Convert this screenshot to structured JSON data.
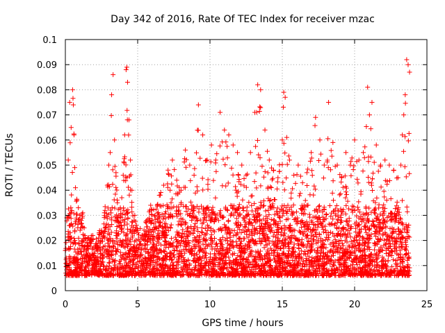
{
  "chart_data": {
    "type": "scatter",
    "title": "Day 342 of 2016, Rate Of TEC Index for receiver mzac",
    "xlabel": "GPS time / hours",
    "ylabel": "ROTI / TECUs",
    "xlim": [
      0,
      25
    ],
    "ylim": [
      0,
      0.1
    ],
    "grid": true,
    "marker": "+",
    "color": "#ff0000",
    "x_ticks": [
      0,
      5,
      10,
      15,
      20,
      25
    ],
    "x_tick_labels": [
      "0",
      "5",
      "10",
      "15",
      "20",
      "25"
    ],
    "y_ticks": [
      0,
      0.01,
      0.02,
      0.03,
      0.04,
      0.05,
      0.06,
      0.07,
      0.08,
      0.09,
      0.1
    ],
    "y_tick_labels": [
      "0",
      "0.01",
      "0.02",
      "0.03",
      "0.04",
      "0.05",
      "0.06",
      "0.07",
      "0.08",
      "0.09",
      "0.1"
    ],
    "series": [
      {
        "name": "ROTI",
        "x": [
          0.0,
          0.1,
          0.2,
          0.3,
          0.4,
          0.5,
          0.55,
          0.6,
          0.65,
          0.7,
          0.8,
          0.9,
          1.0,
          1.1,
          1.2,
          1.3,
          1.5,
          1.7,
          1.9,
          2.1,
          2.3,
          2.5,
          2.7,
          2.9,
          3.0,
          3.1,
          3.2,
          3.3,
          3.4,
          3.5,
          3.6,
          3.7,
          3.8,
          3.9,
          4.0,
          4.1,
          4.2,
          4.25,
          4.3,
          4.4,
          4.5,
          4.6,
          4.8,
          5.0,
          5.3,
          5.6,
          5.9,
          6.2,
          6.5,
          6.8,
          7.1,
          7.4,
          7.7,
          8.0,
          8.3,
          8.6,
          8.9,
          9.2,
          9.5,
          9.8,
          10.1,
          10.4,
          10.7,
          11.0,
          11.3,
          11.6,
          11.9,
          12.2,
          12.5,
          12.8,
          13.1,
          13.3,
          13.5,
          13.8,
          14.1,
          14.4,
          14.7,
          15.0,
          15.1,
          15.2,
          15.5,
          15.8,
          16.1,
          16.4,
          16.7,
          17.0,
          17.3,
          17.6,
          17.9,
          18.2,
          18.5,
          18.8,
          19.1,
          19.4,
          19.7,
          20.0,
          20.3,
          20.6,
          20.9,
          21.2,
          21.5,
          21.8,
          22.1,
          22.4,
          22.7,
          23.0,
          23.2,
          23.3,
          23.4,
          23.5,
          23.6,
          23.7,
          23.8
        ],
        "y": [
          0.016,
          0.029,
          0.052,
          0.075,
          0.065,
          0.08,
          0.074,
          0.062,
          0.049,
          0.041,
          0.036,
          0.033,
          0.03,
          0.028,
          0.031,
          0.025,
          0.019,
          0.02,
          0.022,
          0.018,
          0.021,
          0.024,
          0.031,
          0.042,
          0.05,
          0.055,
          0.078,
          0.086,
          0.06,
          0.047,
          0.035,
          0.03,
          0.033,
          0.037,
          0.046,
          0.062,
          0.088,
          0.089,
          0.083,
          0.068,
          0.052,
          0.04,
          0.03,
          0.024,
          0.022,
          0.027,
          0.034,
          0.03,
          0.038,
          0.042,
          0.048,
          0.052,
          0.044,
          0.04,
          0.056,
          0.05,
          0.046,
          0.074,
          0.062,
          0.052,
          0.058,
          0.052,
          0.071,
          0.064,
          0.062,
          0.058,
          0.055,
          0.05,
          0.046,
          0.055,
          0.071,
          0.082,
          0.08,
          0.064,
          0.052,
          0.048,
          0.045,
          0.06,
          0.079,
          0.077,
          0.052,
          0.046,
          0.05,
          0.043,
          0.047,
          0.055,
          0.069,
          0.06,
          0.05,
          0.075,
          0.059,
          0.05,
          0.045,
          0.055,
          0.05,
          0.06,
          0.052,
          0.055,
          0.081,
          0.075,
          0.058,
          0.05,
          0.052,
          0.05,
          0.048,
          0.045,
          0.05,
          0.062,
          0.07,
          0.078,
          0.092,
          0.09,
          0.087
        ]
      }
    ]
  }
}
